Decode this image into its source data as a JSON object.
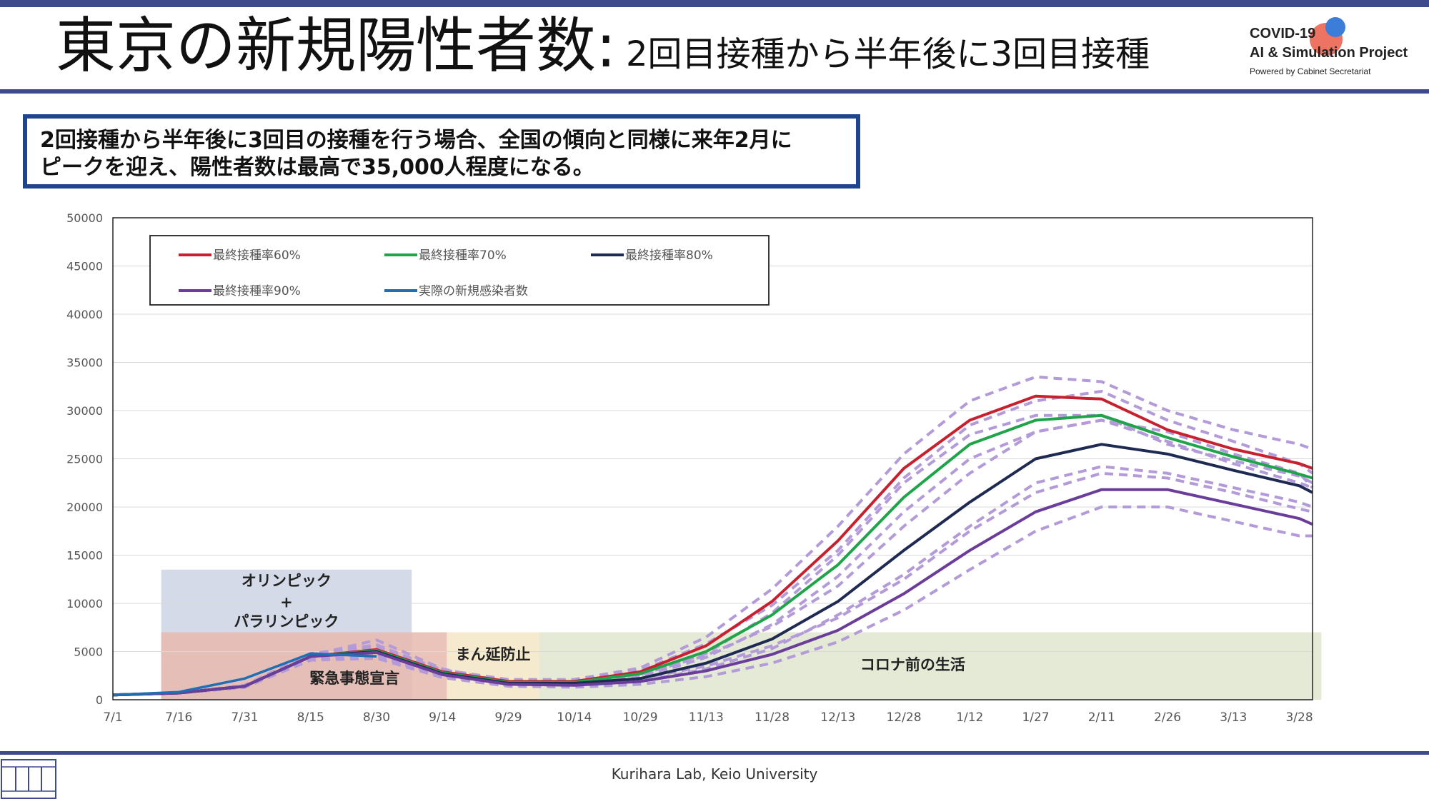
{
  "header": {
    "title_main": "東京の新規陽性者数:",
    "title_sub": "2回目接種から半年後に3回目接種",
    "logo_line1": "COVID-19",
    "logo_line2": "AI & Simulation Project",
    "logo_line3": "Powered by Cabinet Secretariat"
  },
  "callout": {
    "line1": "2回接種から半年後に3回目の接種を行う場合、全国の傾向と同様に来年2月に",
    "line2": "ピークを迎え、陽性者数は最高で35,000人程度になる。"
  },
  "footer": {
    "text": "Kurihara Lab, Keio University"
  },
  "colors": {
    "rate60": "#c8202e",
    "rate70": "#1fa44a",
    "rate80": "#1e2a52",
    "rate90": "#6a3d9a",
    "actual": "#1f6fb2",
    "band60": "#e0896a",
    "band70": "#a9d8a6",
    "band80": "#6b6b80",
    "band90": "#b39ad8",
    "olympics": "#ccd3e3",
    "emergency": "#e6b9ae",
    "preventive": "#f3e6c6",
    "normal": "#dfe6cf",
    "accent": "#3f4a8c"
  },
  "chart_data": {
    "type": "line",
    "ylim": [
      0,
      50000
    ],
    "yticks": [
      0,
      5000,
      10000,
      15000,
      20000,
      25000,
      30000,
      35000,
      40000,
      45000,
      50000
    ],
    "xticks": [
      "7/1",
      "7/16",
      "7/31",
      "8/15",
      "8/30",
      "9/14",
      "9/29",
      "10/14",
      "10/29",
      "11/13",
      "11/28",
      "12/13",
      "12/28",
      "1/12",
      "1/27",
      "2/11",
      "2/26",
      "3/13",
      "3/28"
    ],
    "x_days": [
      0,
      15,
      30,
      45,
      60,
      75,
      90,
      105,
      120,
      135,
      150,
      165,
      180,
      195,
      210,
      225,
      240,
      255,
      270,
      273
    ],
    "legend": [
      "最終接種率60%",
      "最終接種率70%",
      "最終接種率80%",
      "最終接種率90%",
      "実際の新規感染者数"
    ],
    "series": [
      {
        "name": "最終接種率60%",
        "key": "rate60",
        "values": [
          500,
          700,
          1400,
          4500,
          5200,
          2900,
          1900,
          1900,
          2900,
          5600,
          10200,
          16500,
          24000,
          29000,
          31500,
          31200,
          28000,
          26000,
          24500,
          24000
        ]
      },
      {
        "name": "最終接種率70%",
        "key": "rate70",
        "values": [
          500,
          700,
          1400,
          4500,
          5100,
          2800,
          1800,
          1800,
          2700,
          5000,
          8800,
          14000,
          21000,
          26500,
          29000,
          29500,
          27200,
          25200,
          23400,
          23000
        ]
      },
      {
        "name": "最終接種率80%",
        "key": "rate80",
        "values": [
          500,
          700,
          1400,
          4500,
          5000,
          2700,
          1700,
          1700,
          2200,
          3800,
          6300,
          10200,
          15500,
          20500,
          25000,
          26500,
          25500,
          23800,
          22200,
          21500
        ]
      },
      {
        "name": "最終接種率90%",
        "key": "rate90",
        "values": [
          500,
          700,
          1400,
          4500,
          4900,
          2600,
          1600,
          1500,
          1900,
          3000,
          4700,
          7200,
          11000,
          15500,
          19500,
          21800,
          21800,
          20300,
          18800,
          18200
        ]
      },
      {
        "name": "実際の新規感染者数",
        "key": "actual",
        "values": [
          500,
          800,
          2200,
          4800,
          4500
        ]
      }
    ],
    "bands": [
      {
        "key": "band60",
        "upper": [
          500,
          700,
          1500,
          4800,
          5600,
          3100,
          2100,
          2100,
          3300,
          6500,
          11500,
          18000,
          25500,
          31000,
          33500,
          33000,
          30000,
          28000,
          26500,
          26000
        ],
        "lower": [
          500,
          700,
          1300,
          4200,
          4800,
          2600,
          1700,
          1700,
          2500,
          4800,
          9000,
          15000,
          22500,
          27500,
          29500,
          29500,
          26500,
          24800,
          23200,
          22500
        ]
      },
      {
        "key": "band70",
        "upper": [
          500,
          700,
          1500,
          4700,
          5500,
          3000,
          2000,
          2000,
          3000,
          5800,
          9800,
          15500,
          23000,
          28500,
          31000,
          32000,
          29000,
          26800,
          24500,
          23500
        ],
        "lower": [
          500,
          700,
          1300,
          4200,
          4700,
          2500,
          1600,
          1600,
          2300,
          4400,
          7800,
          12800,
          19500,
          25000,
          27800,
          29000,
          26800,
          24500,
          22500,
          22000
        ]
      },
      {
        "key": "band80",
        "upper": [
          500,
          700,
          1500,
          4700,
          5700,
          3000,
          1900,
          1900,
          2600,
          4600,
          7600,
          11800,
          18000,
          23500,
          27800,
          29000,
          27800,
          25500,
          23500,
          22000
        ],
        "lower": [
          500,
          700,
          1300,
          4200,
          4500,
          2400,
          1500,
          1500,
          1900,
          3200,
          5300,
          8800,
          13000,
          18000,
          22500,
          24200,
          23500,
          22000,
          20500,
          20000
        ]
      },
      {
        "key": "band90",
        "upper": [
          500,
          700,
          1500,
          4600,
          6200,
          3200,
          1800,
          1700,
          2200,
          3500,
          5600,
          8500,
          12500,
          17500,
          21500,
          23500,
          23000,
          21500,
          19800,
          19500
        ]
      },
      {
        "key": "band90b",
        "lower": [
          500,
          700,
          1300,
          4100,
          4300,
          2300,
          1400,
          1300,
          1600,
          2400,
          3800,
          6000,
          9300,
          13500,
          17500,
          20000,
          20000,
          18500,
          17000,
          17000
        ]
      }
    ],
    "regions": [
      {
        "label": "オリンピック\n+\nパラリンピック",
        "key": "olympics",
        "x0": 11,
        "x1": 68,
        "y0": 0,
        "y1": 13500
      },
      {
        "label": "緊急事態宣言",
        "key": "emergency",
        "x0": 11,
        "x1": 76,
        "y0": 0,
        "y1": 7000
      },
      {
        "label": "まん延防止",
        "key": "preventive",
        "x0": 76,
        "x1": 97,
        "y0": 0,
        "y1": 7000
      },
      {
        "label": "コロナ前の生活",
        "key": "normal",
        "x0": 97,
        "x1": 275,
        "y0": 0,
        "y1": 7000
      }
    ],
    "region_labels": {
      "olympics_1": "オリンピック",
      "olympics_2": "+",
      "olympics_3": "パラリンピック",
      "emergency": "緊急事態宣言",
      "preventive": "まん延防止",
      "normal": "コロナ前の生活"
    },
    "grid": true,
    "legend_placement": "top-left"
  }
}
